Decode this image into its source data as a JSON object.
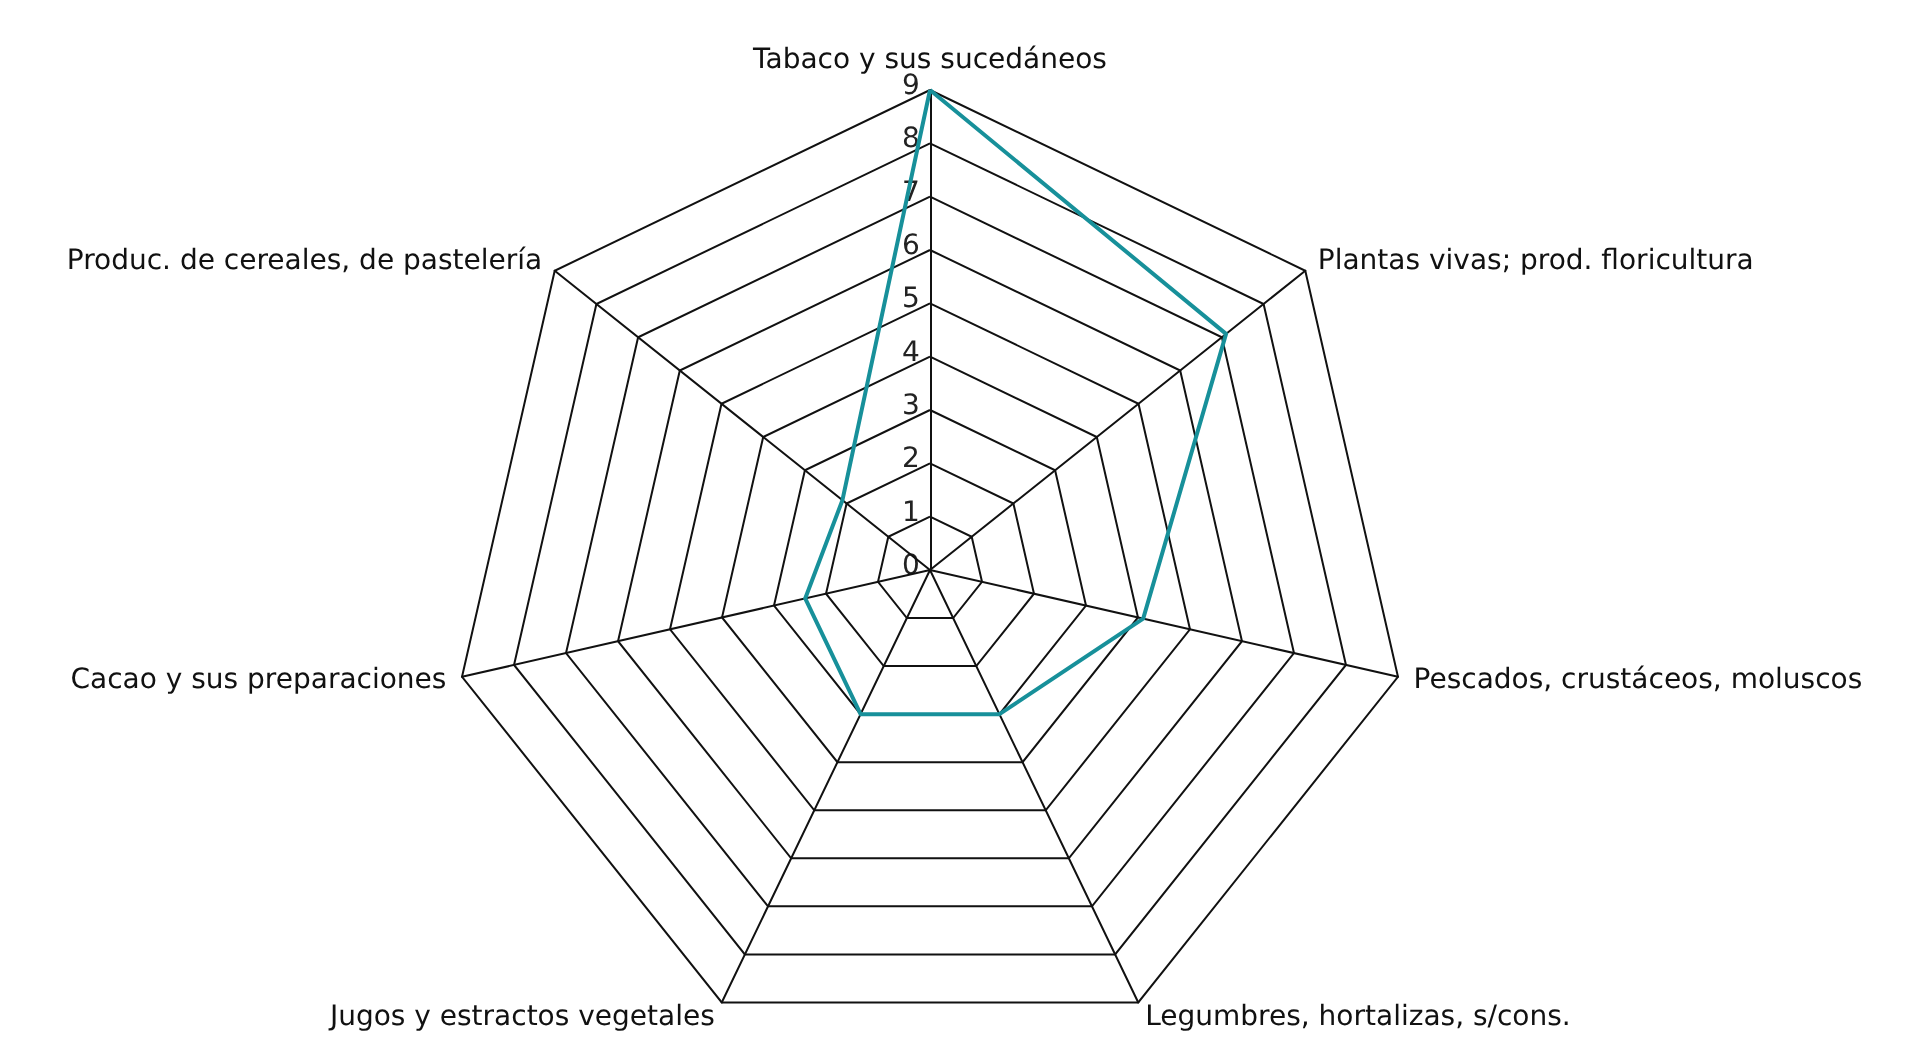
{
  "chart_data": {
    "type": "radar",
    "categories": [
      "Tabaco y sus sucedáneos",
      "Plantas vivas; prod. floricultura",
      "Pescados, crustáceos, moluscos",
      "Legumbres, hortalizas, s/cons.",
      "Jugos y estractos vegetales",
      "Cacao y sus preparaciones",
      "Produc. de cereales, de pastelería"
    ],
    "series": [
      {
        "color": "#17909a",
        "values": [
          9,
          7.1,
          4.1,
          3,
          3,
          2.4,
          2.1
        ]
      }
    ],
    "ylim": [
      0,
      9
    ],
    "yticks": [
      0,
      1,
      2,
      3,
      4,
      5,
      6,
      7,
      8,
      9
    ],
    "grid": true,
    "marker": "none"
  }
}
